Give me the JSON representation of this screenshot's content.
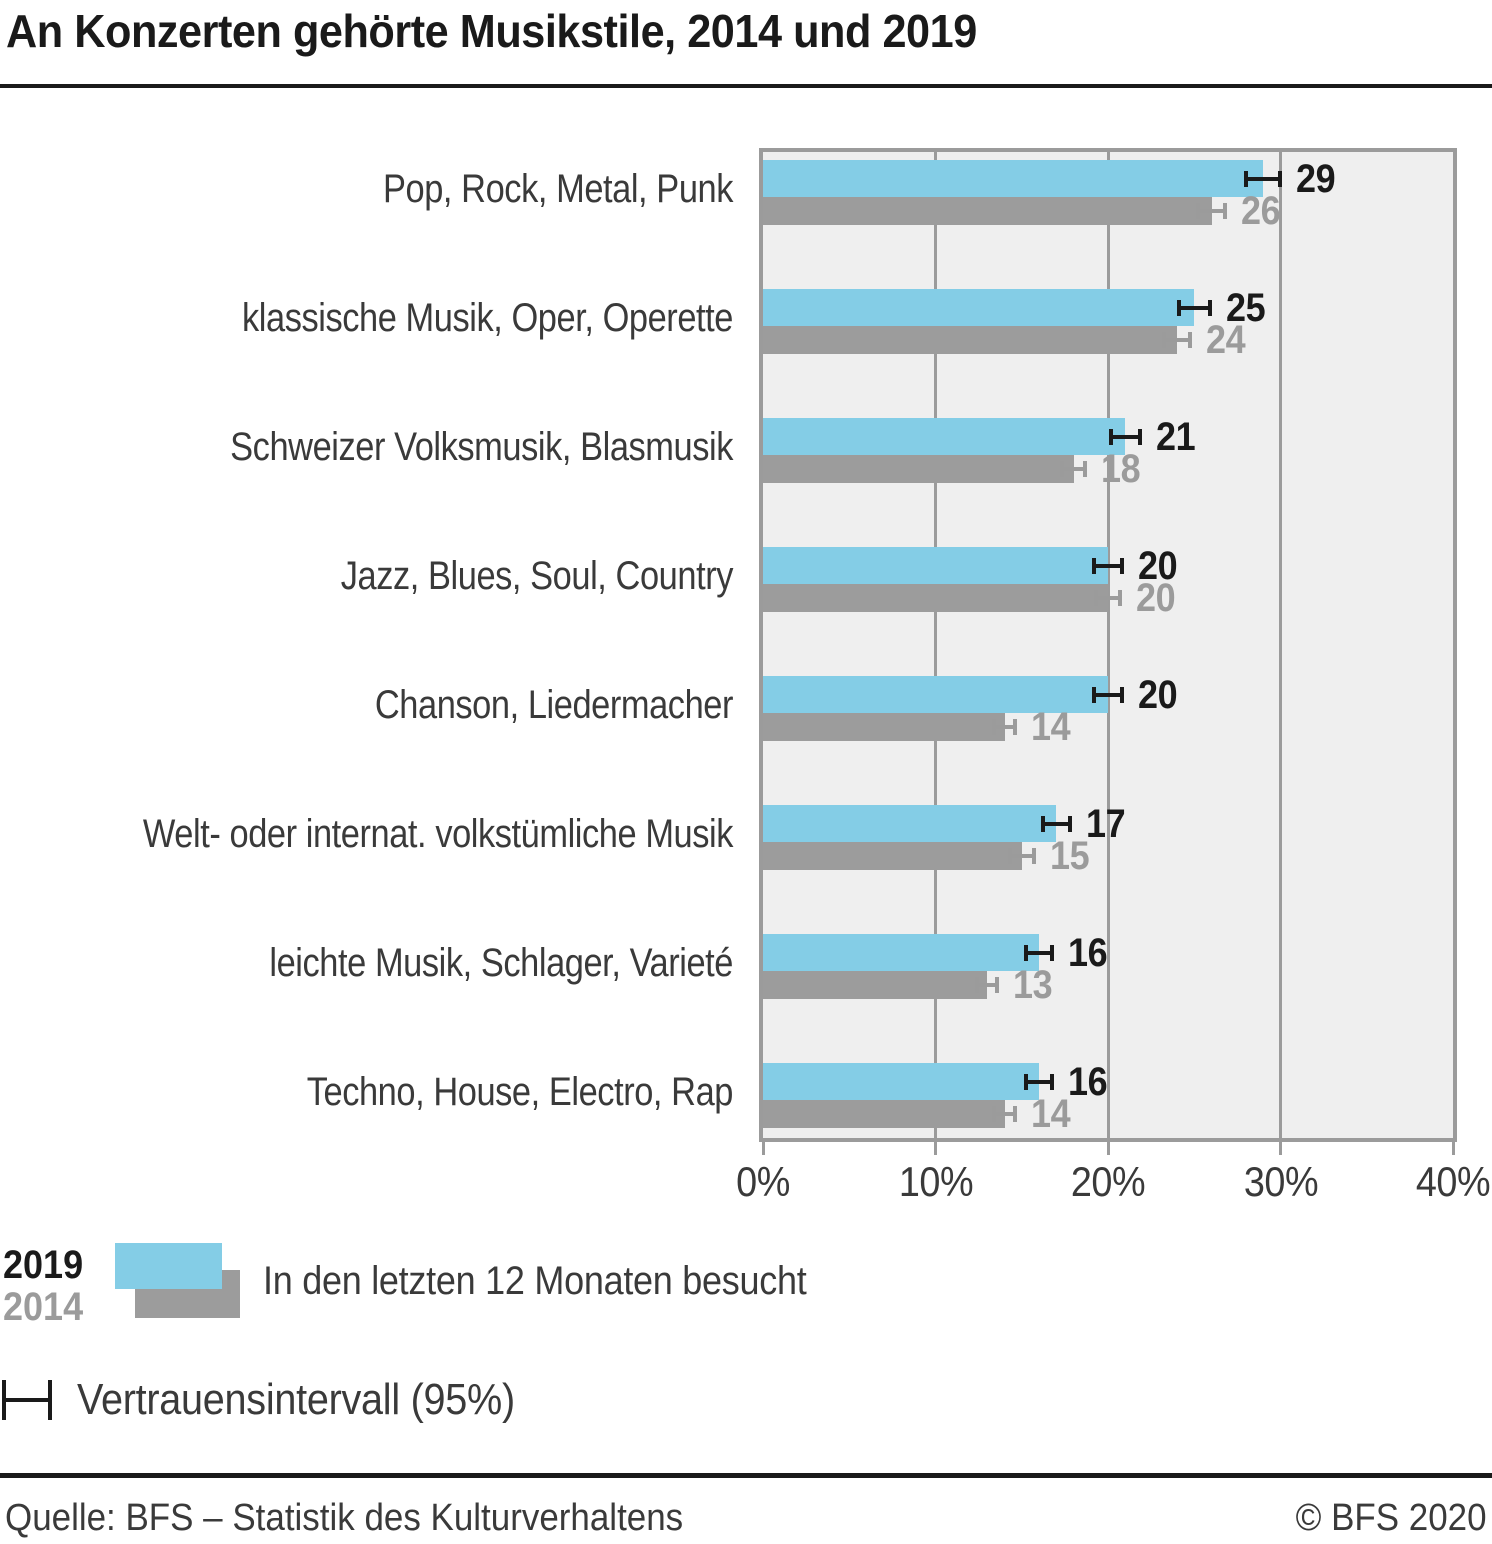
{
  "title": "An Konzerten gehörte Musikstile, 2014 und 2019",
  "chart_data": {
    "type": "bar",
    "orientation": "horizontal",
    "title": "An Konzerten gehörte Musikstile, 2014 und 2019",
    "categories": [
      "Pop, Rock, Metal, Punk",
      "klassische Musik, Oper, Operette",
      "Schweizer Volksmusik, Blasmusik",
      "Jazz, Blues, Soul, Country",
      "Chanson, Liedermacher",
      "Welt- oder internat. volkstümliche Musik",
      "leichte Musik, Schlager, Varieté",
      "Techno, House, Electro, Rap"
    ],
    "series": [
      {
        "name": "2019",
        "color": "#84cde6",
        "label_color": "#1a1a1a",
        "values": [
          29,
          25,
          21,
          20,
          20,
          17,
          16,
          16
        ],
        "ci_halfwidth_pct": [
          1.1,
          1.0,
          0.95,
          0.9,
          0.9,
          0.9,
          0.85,
          0.85
        ]
      },
      {
        "name": "2014",
        "color": "#9c9c9c",
        "label_color": "#9b9b9b",
        "values": [
          26,
          24,
          18,
          20,
          14,
          15,
          13,
          14
        ],
        "ci_halfwidth_pct": [
          0.9,
          0.85,
          0.8,
          0.8,
          0.75,
          0.8,
          0.7,
          0.75
        ]
      }
    ],
    "xlim": [
      0,
      40
    ],
    "xticks": [
      {
        "value": 0,
        "label": "0%"
      },
      {
        "value": 10,
        "label": "10%"
      },
      {
        "value": 20,
        "label": "20%"
      },
      {
        "value": 30,
        "label": "30%"
      },
      {
        "value": 40,
        "label": "40%"
      }
    ],
    "unit": "%",
    "grid": true,
    "plot_background": "#efefef",
    "errorbar_meaning": "Vertrauensintervall (95%)"
  },
  "legend": {
    "year_2019": "2019",
    "year_2014": "2014",
    "series_label": "In den letzten 12 Monaten besucht",
    "ci_label": "Vertrauensintervall (95%)"
  },
  "footer": {
    "source": "Quelle: BFS – Statistik des Kulturverhaltens",
    "copyright": "© BFS 2020"
  },
  "colors": {
    "bar_2019": "#84cde6",
    "bar_2014": "#9c9c9c",
    "text_dark": "#1a1a1a",
    "text_gray": "#9b9b9b",
    "text_body": "#3a3a3a",
    "plot_background": "#efefef",
    "gridline": "#9b9b9b"
  }
}
